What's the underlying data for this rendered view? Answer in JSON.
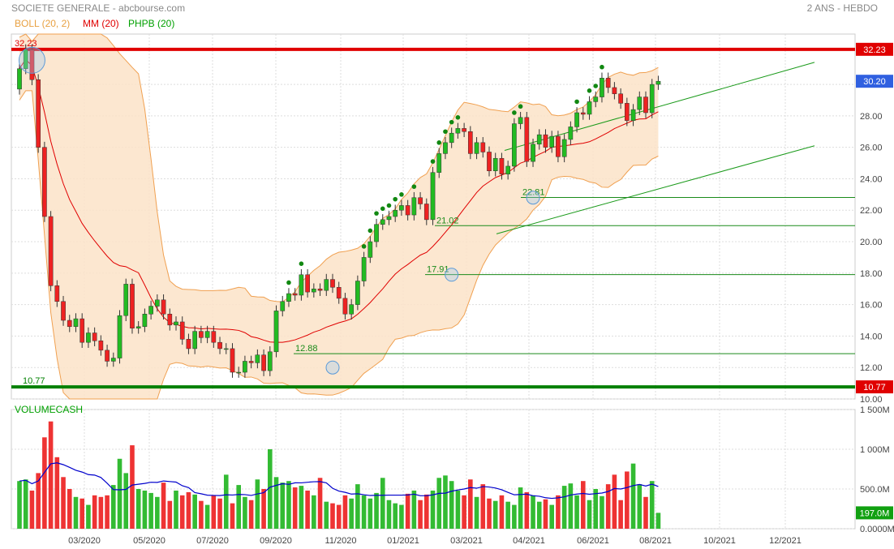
{
  "header": {
    "title": "SOCIETE GENERALE - abcbourse.com",
    "period": "2 ANS - HEBDO"
  },
  "legend": {
    "items": [
      {
        "label": "BOLL (20, 2)",
        "color": "#e8a040"
      },
      {
        "label": "MM (20)",
        "color": "#e00000"
      },
      {
        "label": "PHPB (20)",
        "color": "#00a000"
      }
    ]
  },
  "price_panel": {
    "ylim": [
      10.0,
      33.2
    ],
    "ticks": [
      10,
      12,
      14,
      16,
      18,
      20,
      22,
      24,
      26,
      28,
      30
    ],
    "tick_labels": [
      "10.00",
      "12.00",
      "14.00",
      "16.00",
      "18.00",
      "20.00",
      "22.00",
      "24.00",
      "26.00",
      "28.00",
      "30.00"
    ],
    "high_line": {
      "value": 32.23,
      "label": "32.23",
      "color": "#e00000"
    },
    "low_line": {
      "value": 10.77,
      "label": "10.77",
      "color": "#008000"
    },
    "last_price": {
      "value": 30.2,
      "label": "30.20",
      "color": "#3060e0"
    },
    "support_lines": [
      {
        "value": 12.88,
        "label": "12.88"
      },
      {
        "value": 17.91,
        "label": "17.91"
      },
      {
        "value": 21.02,
        "label": "21.02"
      },
      {
        "value": 22.81,
        "label": "22.81"
      }
    ],
    "up_color": "#22bb22",
    "down_color": "#ee2222"
  },
  "volume_panel": {
    "title": "VOLUMECASH",
    "ylim": [
      0,
      1500
    ],
    "ticks": [
      0,
      500,
      1000,
      1500
    ],
    "tick_labels": [
      "0.0000M",
      "500.0M",
      "1 000M",
      "1 500M"
    ],
    "last_volume_label": "197.0M",
    "average_color": "#0000cc"
  },
  "x_axis": {
    "labels": [
      "03/2020",
      "05/2020",
      "07/2020",
      "09/2020",
      "11/2020",
      "01/2021",
      "03/2021",
      "04/2021",
      "06/2021",
      "08/2021",
      "10/2021",
      "12/2021"
    ]
  },
  "chart_data": {
    "type": "candlestick",
    "period": "weekly",
    "start": "2020-01-03",
    "series": [
      {
        "name": "price",
        "open": [
          29.7,
          31.0,
          32.2,
          30.3,
          26.0,
          21.6,
          17.2,
          16.2,
          15.0,
          14.6,
          15.1,
          13.6,
          14.2,
          13.7,
          13.1,
          12.4,
          12.6,
          15.3,
          17.3,
          14.5,
          14.6,
          15.4,
          15.9,
          16.3,
          15.4,
          14.7,
          14.9,
          13.8,
          13.2,
          14.3,
          13.9,
          14.3,
          13.6,
          13.2,
          13.2,
          11.7,
          11.7,
          12.4,
          12.3,
          12.8,
          11.8,
          13.0,
          15.6,
          16.2,
          16.7,
          16.6,
          17.9,
          16.8,
          17.0,
          16.9,
          17.6,
          17.1,
          16.4,
          15.4,
          16.0,
          17.5,
          19.0,
          20.0,
          21.1,
          21.4,
          21.6,
          22.0,
          22.3,
          21.7,
          22.8,
          22.4,
          21.4,
          24.4,
          25.6,
          26.3,
          26.9,
          27.2,
          27.0,
          25.6,
          26.3,
          25.7,
          24.5,
          25.3,
          24.3,
          24.8,
          27.5,
          27.9,
          25.1,
          26.2,
          26.8,
          26.0,
          26.7,
          25.4,
          26.5,
          27.3,
          28.2,
          28.1,
          28.9,
          29.2,
          30.4,
          29.8,
          29.4,
          28.8,
          27.7,
          28.4,
          29.2,
          28.2,
          30.0
        ],
        "close": [
          31.0,
          32.2,
          30.3,
          26.0,
          21.6,
          17.2,
          16.2,
          15.0,
          14.6,
          15.1,
          13.6,
          14.2,
          13.7,
          13.1,
          12.4,
          12.6,
          15.3,
          17.3,
          14.5,
          14.6,
          15.4,
          15.9,
          16.3,
          15.4,
          14.7,
          14.9,
          13.8,
          13.2,
          14.3,
          13.9,
          14.3,
          13.6,
          13.2,
          13.2,
          11.7,
          11.7,
          12.4,
          12.3,
          12.8,
          11.8,
          13.0,
          15.6,
          16.2,
          16.7,
          16.6,
          17.9,
          16.8,
          17.0,
          16.9,
          17.6,
          17.1,
          16.4,
          15.4,
          16.0,
          17.5,
          19.0,
          20.0,
          21.1,
          21.4,
          21.6,
          22.0,
          22.3,
          21.7,
          22.8,
          22.4,
          21.4,
          24.4,
          25.6,
          26.3,
          26.9,
          27.2,
          27.0,
          25.6,
          26.3,
          25.7,
          24.5,
          25.3,
          24.3,
          24.8,
          27.5,
          27.9,
          25.1,
          26.2,
          26.8,
          26.0,
          26.7,
          25.4,
          26.5,
          27.3,
          28.2,
          28.1,
          28.9,
          29.2,
          30.4,
          29.8,
          29.4,
          28.8,
          27.7,
          28.4,
          29.2,
          28.2,
          30.0,
          30.2
        ]
      },
      {
        "name": "volume",
        "values": [
          600,
          620,
          480,
          700,
          1150,
          1350,
          900,
          650,
          500,
          400,
          380,
          300,
          420,
          400,
          420,
          550,
          880,
          700,
          1050,
          500,
          480,
          450,
          400,
          580,
          350,
          480,
          420,
          460,
          430,
          350,
          300,
          420,
          380,
          680,
          320,
          550,
          400,
          360,
          620,
          500,
          1000,
          650,
          580,
          600,
          520,
          540,
          480,
          420,
          640,
          340,
          320,
          300,
          420,
          380,
          560,
          420,
          380,
          450,
          640,
          360,
          320,
          300,
          440,
          480,
          360,
          430,
          480,
          640,
          670,
          600,
          480,
          420,
          620,
          400,
          560,
          380,
          350,
          420,
          340,
          300,
          520,
          460,
          420,
          340,
          370,
          300,
          420,
          540,
          570,
          420,
          600,
          360,
          500,
          410,
          560,
          680,
          360,
          720,
          820,
          560,
          400,
          600,
          200
        ]
      }
    ]
  }
}
